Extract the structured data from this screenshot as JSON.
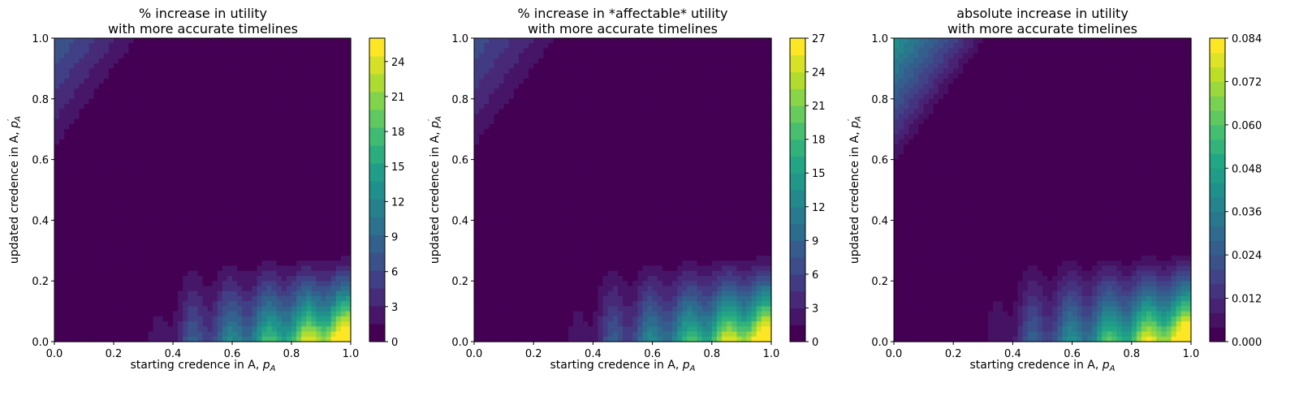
{
  "chart_data": [
    {
      "type": "heatmap",
      "subtype": "filled-contour",
      "title": [
        "% increase in utility",
        "with more accurate timelines"
      ],
      "xlabel": {
        "text": "starting credence in A, ",
        "math": "p",
        "sub": "A"
      },
      "ylabel": {
        "text": "updated credence in A, ",
        "math": "p",
        "sub": "A",
        "prime": "′"
      },
      "xlim": [
        0,
        1
      ],
      "ylim": [
        0,
        1
      ],
      "x_ticks": [
        "0.0",
        "0.2",
        "0.4",
        "0.6",
        "0.8",
        "1.0"
      ],
      "y_ticks": [
        "0.0",
        "0.2",
        "0.4",
        "0.6",
        "0.8",
        "1.0"
      ],
      "colorbar": {
        "min": 0,
        "max": 26,
        "levels": 17,
        "ticks": [
          "0",
          "3",
          "6",
          "9",
          "12",
          "15",
          "18",
          "21",
          "24"
        ],
        "tick_values": [
          0,
          3,
          6,
          9,
          12,
          15,
          18,
          21,
          24
        ],
        "colormap": "viridis"
      },
      "features": {
        "topleft_peak": 0.3,
        "bottomright_peak": 1.0,
        "band_strength": 0.55
      }
    },
    {
      "type": "heatmap",
      "subtype": "filled-contour",
      "title": [
        "% increase in *affectable* utility",
        "with more accurate timelines"
      ],
      "xlabel": {
        "text": "starting credence in A, ",
        "math": "p",
        "sub": "A"
      },
      "ylabel": {
        "text": "updated credence in A, ",
        "math": "p",
        "sub": "A",
        "prime": "′"
      },
      "xlim": [
        0,
        1
      ],
      "ylim": [
        0,
        1
      ],
      "x_ticks": [
        "0.0",
        "0.2",
        "0.4",
        "0.6",
        "0.8",
        "1.0"
      ],
      "y_ticks": [
        "0.0",
        "0.2",
        "0.4",
        "0.6",
        "0.8",
        "1.0"
      ],
      "colorbar": {
        "min": 0,
        "max": 27,
        "levels": 18,
        "ticks": [
          "0",
          "3",
          "6",
          "9",
          "12",
          "15",
          "18",
          "21",
          "24",
          "27"
        ],
        "tick_values": [
          0,
          3,
          6,
          9,
          12,
          15,
          18,
          21,
          24,
          27
        ],
        "colormap": "viridis"
      },
      "features": {
        "topleft_peak": 0.27,
        "bottomright_peak": 1.0,
        "band_strength": 0.55
      }
    },
    {
      "type": "heatmap",
      "subtype": "filled-contour",
      "title": [
        "absolute increase in utility",
        "with more accurate timelines"
      ],
      "xlabel": {
        "text": "starting credence in A, ",
        "math": "p",
        "sub": "A"
      },
      "ylabel": {
        "text": "updated credence in A, ",
        "math": "p",
        "sub": "A",
        "prime": "′"
      },
      "xlim": [
        0,
        1
      ],
      "ylim": [
        0,
        1
      ],
      "x_ticks": [
        "0.0",
        "0.2",
        "0.4",
        "0.6",
        "0.8",
        "1.0"
      ],
      "y_ticks": [
        "0.0",
        "0.2",
        "0.4",
        "0.6",
        "0.8",
        "1.0"
      ],
      "colorbar": {
        "min": 0,
        "max": 0.084,
        "levels": 21,
        "ticks": [
          "0.000",
          "0.012",
          "0.024",
          "0.036",
          "0.048",
          "0.060",
          "0.072",
          "0.084"
        ],
        "tick_values": [
          0,
          0.012,
          0.024,
          0.036,
          0.048,
          0.06,
          0.072,
          0.084
        ],
        "colormap": "viridis"
      },
      "features": {
        "topleft_peak": 0.52,
        "bottomright_peak": 1.0,
        "band_strength": 0.62
      }
    }
  ]
}
